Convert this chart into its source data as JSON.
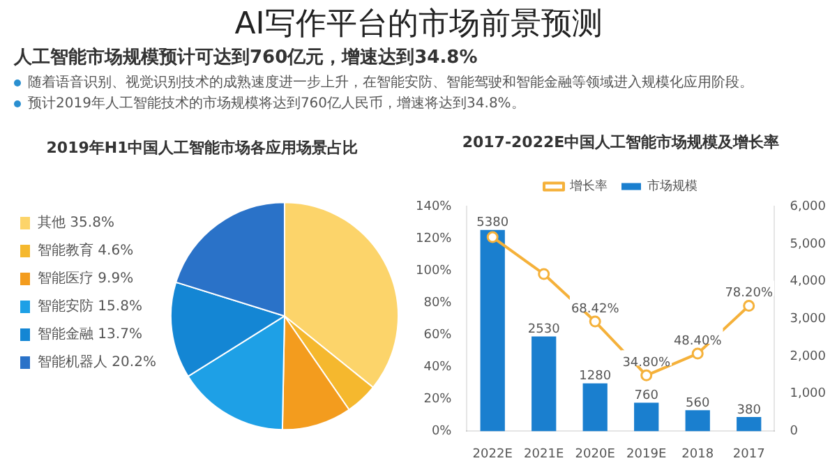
{
  "chart_data": [
    {
      "type": "pie",
      "title": "2019年H1中国人工智能市场各应用场景占比",
      "annotations": [
        "AI写作平台的市场前景预测",
        "人工智能市场规模预计可达到760亿元，增速达到34.8%",
        "随着语音识别、视觉识别技术的成熟速度进一步上升，在智能安防、智能驾驶和智能金融等领域进入规模化应用阶段。",
        "预计2019年人工智能技术的市场规模将达到760亿人民币，增速将达到34.8%。"
      ],
      "categories": [
        "其他",
        "智能教育",
        "智能医疗",
        "智能安防",
        "智能金融",
        "智能机器人"
      ],
      "values": [
        35.8,
        4.6,
        9.9,
        15.8,
        13.7,
        20.2
      ],
      "value_labels": [
        "35.8%",
        "4.6%",
        "9.9%",
        "15.8%",
        "13.7%",
        "20.2%"
      ],
      "colors": [
        "#fcd46a",
        "#f5b82e",
        "#f39c1e",
        "#1ea0e6",
        "#1486d4",
        "#2a72c8"
      ],
      "legend": "left"
    },
    {
      "type": "bar",
      "title": "2017-2022E中国人工智能市场规模及增长率",
      "categories": [
        "2022E",
        "2021E",
        "2020E",
        "2019E",
        "2018",
        "2017"
      ],
      "series": [
        {
          "name": "市场规模",
          "type": "bar",
          "color": "#1a7fcf",
          "values": [
            5380,
            2530,
            1280,
            760,
            560,
            380
          ],
          "value_labels": [
            "5380",
            "2530",
            "1280",
            "760",
            "560",
            "380"
          ]
        },
        {
          "name": "增长率",
          "type": "line",
          "axis": "y2",
          "color": "#f5b13a",
          "marker": "circle",
          "values": [
            121,
            98,
            68.42,
            34.8,
            48.4,
            78.2
          ],
          "value_labels": [
            null,
            null,
            "68.42%",
            "34.80%",
            "48.40%",
            "78.20%"
          ]
        }
      ],
      "ylim": [
        0,
        6000
      ],
      "yticks": [
        0,
        {
          "value": 1000,
          "label": "1,000"
        },
        {
          "value": 2000,
          "label": "2,000"
        },
        {
          "value": 3000,
          "label": "3,000"
        },
        {
          "value": 4000,
          "label": "4,000"
        },
        {
          "value": 5000,
          "label": "5,000"
        },
        {
          "value": 6000,
          "label": "6,000"
        }
      ],
      "y2lim": [
        0,
        140
      ],
      "y2ticks": [
        {
          "value": 0,
          "label": "0%"
        },
        {
          "value": 20,
          "label": "20%"
        },
        {
          "value": 40,
          "label": "40%"
        },
        {
          "value": 60,
          "label": "60%"
        },
        {
          "value": 80,
          "label": "80%"
        },
        {
          "value": 100,
          "label": "100%"
        },
        {
          "value": 120,
          "label": "120%"
        },
        {
          "value": 140,
          "label": "140%"
        }
      ],
      "grid": false,
      "legend": "top"
    }
  ]
}
